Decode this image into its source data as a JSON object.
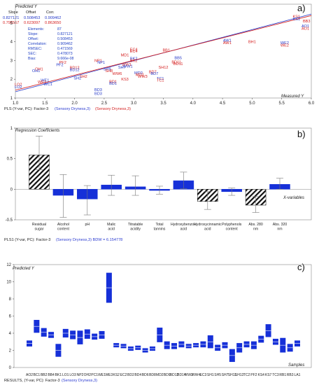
{
  "chart_data": [
    {
      "type": "scatter",
      "panel": "a)",
      "ylabel": "Predicted Y",
      "xlabel": "Measured Y",
      "xlim": [
        1.0,
        6.0
      ],
      "ylim": [
        1.0,
        6.0
      ],
      "xticks": [
        "1.0",
        "1.5",
        "2.0",
        "2.5",
        "3.0",
        "3.5",
        "4.0",
        "4.5",
        "5.0",
        "5.5",
        "6.0"
      ],
      "yticks": [
        "1",
        "2",
        "3",
        "4",
        "5"
      ],
      "regression_table": {
        "headers": [
          "Slope",
          "Offset",
          "Corr."
        ],
        "rows": [
          {
            "slope": "0.827121",
            "offset": "0.508453",
            "corr": "0.909462",
            "color": "#2438c8"
          },
          {
            "slope": "0.795557",
            "offset": "0.623097",
            "corr": "0.863650",
            "color": "#d41c1c"
          }
        ]
      },
      "stats": [
        {
          "label": "Elements:",
          "value": "87"
        },
        {
          "label": "Slope:",
          "value": "0.827121"
        },
        {
          "label": "Offset:",
          "value": "0.508453"
        },
        {
          "label": "Correlation:",
          "value": "0.909462"
        },
        {
          "label": "RMSEC:",
          "value": "0.471569"
        },
        {
          "label": "SEC:",
          "value": "0.478073"
        },
        {
          "label": "Bias:",
          "value": "9.666e-08"
        }
      ],
      "lines": [
        {
          "color": "#2438c8",
          "slope": 0.827121,
          "offset": 0.508453
        },
        {
          "color": "#d41c1c",
          "slope": 0.795557,
          "offset": 0.623097
        }
      ],
      "points": [
        {
          "label": "KS1",
          "x": 5.75,
          "y": 5.35,
          "color": "#d41c1c"
        },
        {
          "label": "KS1",
          "x": 5.75,
          "y": 5.22,
          "color": "#2438c8"
        },
        {
          "label": "BB3",
          "x": 5.92,
          "y": 5.1,
          "color": "#d41c1c"
        },
        {
          "label": "AO1",
          "x": 5.9,
          "y": 4.85,
          "color": "#2438c8"
        },
        {
          "label": "AO1",
          "x": 5.9,
          "y": 4.72,
          "color": "#d41c1c"
        },
        {
          "label": "AW1",
          "x": 4.58,
          "y": 4.08,
          "color": "#2438c8"
        },
        {
          "label": "AW1",
          "x": 4.58,
          "y": 3.95,
          "color": "#d41c1c"
        },
        {
          "label": "BH1",
          "x": 5.0,
          "y": 4.0,
          "color": "#d41c1c"
        },
        {
          "label": "WE2",
          "x": 5.55,
          "y": 3.95,
          "color": "#2438c8"
        },
        {
          "label": "WE2",
          "x": 5.55,
          "y": 3.82,
          "color": "#d41c1c"
        },
        {
          "label": "EC4",
          "x": 3.0,
          "y": 3.6,
          "color": "#d41c1c"
        },
        {
          "label": "EC4",
          "x": 3.0,
          "y": 3.5,
          "color": "#d41c1c"
        },
        {
          "label": "BB1",
          "x": 3.55,
          "y": 3.55,
          "color": "#d41c1c"
        },
        {
          "label": "MD1",
          "x": 2.85,
          "y": 3.3,
          "color": "#d41c1c"
        },
        {
          "label": "BK2",
          "x": 3.0,
          "y": 3.1,
          "color": "#2438c8"
        },
        {
          "label": "BK2",
          "x": 3.0,
          "y": 3.0,
          "color": "#d41c1c"
        },
        {
          "label": "BB5",
          "x": 3.75,
          "y": 3.15,
          "color": "#2438c8"
        },
        {
          "label": "BD11",
          "x": 3.72,
          "y": 2.92,
          "color": "#d41c1c"
        },
        {
          "label": "BD11",
          "x": 3.75,
          "y": 2.82,
          "color": "#d41c1c"
        },
        {
          "label": "SH12",
          "x": 3.5,
          "y": 2.65,
          "color": "#d41c1c"
        },
        {
          "label": "NP1",
          "x": 2.4,
          "y": 3.0,
          "color": "#d41c1c"
        },
        {
          "label": "NP1",
          "x": 2.45,
          "y": 2.9,
          "color": "#2438c8"
        },
        {
          "label": "PF2",
          "x": 1.8,
          "y": 2.9,
          "color": "#d41c1c"
        },
        {
          "label": "PF2",
          "x": 1.75,
          "y": 2.78,
          "color": "#2438c8"
        },
        {
          "label": "SH7",
          "x": 2.8,
          "y": 2.65,
          "color": "#2438c8"
        },
        {
          "label": "WW1",
          "x": 2.88,
          "y": 2.8,
          "color": "#d41c1c"
        },
        {
          "label": "WW1",
          "x": 2.9,
          "y": 2.7,
          "color": "#2438c8"
        },
        {
          "label": "OH1",
          "x": 1.4,
          "y": 2.55,
          "color": "#d41c1c"
        },
        {
          "label": "OH1",
          "x": 1.35,
          "y": 2.45,
          "color": "#2438c8"
        },
        {
          "label": "BD12",
          "x": 2.0,
          "y": 2.62,
          "color": "#d41c1c"
        },
        {
          "label": "BD12",
          "x": 2.0,
          "y": 2.52,
          "color": "#2438c8"
        },
        {
          "label": "SH8",
          "x": 2.55,
          "y": 2.55,
          "color": "#2438c8"
        },
        {
          "label": "SH8",
          "x": 2.58,
          "y": 2.45,
          "color": "#d41c1c"
        },
        {
          "label": "WW6",
          "x": 2.72,
          "y": 2.3,
          "color": "#d41c1c"
        },
        {
          "label": "MD2",
          "x": 3.08,
          "y": 2.35,
          "color": "#2438c8"
        },
        {
          "label": "MD2",
          "x": 3.1,
          "y": 2.25,
          "color": "#d41c1c"
        },
        {
          "label": "WW3",
          "x": 3.15,
          "y": 2.15,
          "color": "#d41c1c"
        },
        {
          "label": "BD7",
          "x": 3.32,
          "y": 2.4,
          "color": "#d41c1c"
        },
        {
          "label": "BD7",
          "x": 3.35,
          "y": 2.3,
          "color": "#2438c8"
        },
        {
          "label": "SH2",
          "x": 2.15,
          "y": 2.15,
          "color": "#d41c1c"
        },
        {
          "label": "SH2",
          "x": 2.05,
          "y": 2.07,
          "color": "#2438c8"
        },
        {
          "label": "BD1",
          "x": 2.65,
          "y": 1.88,
          "color": "#d41c1c"
        },
        {
          "label": "BD1",
          "x": 2.65,
          "y": 1.78,
          "color": "#2438c8"
        },
        {
          "label": "KS3",
          "x": 2.85,
          "y": 2.0,
          "color": "#d41c1c"
        },
        {
          "label": "TC1",
          "x": 3.45,
          "y": 2.05,
          "color": "#2438c8"
        },
        {
          "label": "TC1",
          "x": 3.45,
          "y": 1.95,
          "color": "#d41c1c"
        },
        {
          "label": "WE1",
          "x": 1.5,
          "y": 1.95,
          "color": "#2438c8"
        },
        {
          "label": "WE1",
          "x": 1.45,
          "y": 1.85,
          "color": "#d41c1c"
        },
        {
          "label": "WC1",
          "x": 1.55,
          "y": 1.75,
          "color": "#2438c8"
        },
        {
          "label": "LO2",
          "x": 1.05,
          "y": 1.72,
          "color": "#d41c1c"
        },
        {
          "label": "LO2",
          "x": 1.05,
          "y": 1.6,
          "color": "#2438c8"
        },
        {
          "label": "BD3",
          "x": 2.4,
          "y": 1.45,
          "color": "#2438c8"
        },
        {
          "label": "BD3",
          "x": 2.4,
          "y": 1.25,
          "color": "#2438c8"
        }
      ],
      "footer": {
        "prefix": "PLS (Y-var, PC): Factor-3",
        "blue": "(Sensory Dryness,3)",
        "red": "(Sensory Dryness,3)"
      }
    },
    {
      "type": "bar",
      "panel": "b)",
      "ylabel": "Regression Coefficients",
      "xlabel": "X-variables",
      "ylim": [
        -0.5,
        1.0
      ],
      "yticks": [
        "-0.5",
        "0",
        "0.5",
        "1"
      ],
      "categories": [
        "Residual sugar",
        "Alcohol content",
        "pH",
        "Malic acid",
        "Titratable acidity",
        "Total tannins",
        "Hydroxybenzoic acid",
        "Hydroxycinnamic acid",
        "Polyphenols content",
        "Abs. 280 nm",
        "Abs. 320 nm"
      ],
      "values": [
        0.56,
        -0.1,
        -0.16,
        0.07,
        0.04,
        -0.02,
        0.14,
        -0.2,
        -0.04,
        -0.26,
        0.08
      ],
      "err_high": [
        0.87,
        0.24,
        0.06,
        0.23,
        0.22,
        0.05,
        0.28,
        -0.04,
        0.02,
        -0.12,
        0.18
      ],
      "err_low": [
        0.32,
        -0.46,
        -0.42,
        -0.1,
        -0.1,
        -0.08,
        0.01,
        -0.33,
        -0.1,
        -0.38,
        0.0
      ],
      "hatched": [
        true,
        false,
        false,
        false,
        false,
        false,
        false,
        true,
        false,
        true,
        false
      ],
      "bar_color": "#1630d8",
      "footer": {
        "prefix": "PLS1 (Y-var, PC): Factor-3",
        "blue": "(Sensory Dryness,3) BDW = 6.154778"
      }
    },
    {
      "type": "bar",
      "panel": "c)",
      "ylabel": "Predicted Y",
      "xlabel": "Samples",
      "ylim": [
        0,
        12
      ],
      "yticks": [
        "0",
        "2",
        "4",
        "6",
        "8",
        "10",
        "12"
      ],
      "categories": [
        "AO2",
        "BC1",
        "BB2",
        "BB4",
        "BK1",
        "LO1",
        "LO3",
        "NP2",
        "OH2",
        "PC1",
        "WE1",
        "WE3",
        "KS2",
        "EC2",
        "BD2",
        "BD4",
        "BD6",
        "BD8",
        "MD2",
        "BD9",
        "BD12",
        "BD14",
        "WW2",
        "WW4",
        "EC3",
        "SH1",
        "SH5",
        "SH7",
        "SH11",
        "SH13",
        "TC2",
        "PF2",
        "KS4",
        "KS7",
        "TC3",
        "RB1",
        "RB3",
        "LA1"
      ],
      "centers": [
        2.8,
        4.8,
        4.1,
        3.8,
        2.0,
        4.0,
        3.8,
        3.5,
        3.9,
        3.6,
        3.8,
        9.3,
        2.6,
        2.5,
        2.2,
        2.3,
        2.0,
        2.2,
        3.8,
        2.6,
        2.5,
        2.7,
        2.5,
        2.6,
        2.7,
        3.0,
        2.3,
        2.6,
        1.4,
        2.3,
        2.7,
        2.6,
        3.3,
        4.3,
        3.0,
        2.6,
        2.3,
        2.8
      ],
      "half_ranges": [
        0.35,
        0.75,
        0.5,
        0.35,
        0.75,
        0.5,
        0.5,
        0.8,
        0.55,
        0.35,
        0.45,
        1.75,
        0.25,
        0.25,
        0.25,
        0.25,
        0.25,
        0.25,
        0.85,
        0.45,
        0.35,
        0.35,
        0.25,
        0.25,
        0.35,
        0.75,
        0.35,
        0.35,
        0.75,
        0.55,
        0.35,
        0.45,
        0.4,
        0.75,
        0.35,
        0.85,
        0.45,
        0.35
      ],
      "bar_color": "#1630d8",
      "footer": {
        "prefix": "RESULTS, (Y-var, PC): Factor-3",
        "blue": "(Sensory Dryness,3)"
      }
    }
  ]
}
